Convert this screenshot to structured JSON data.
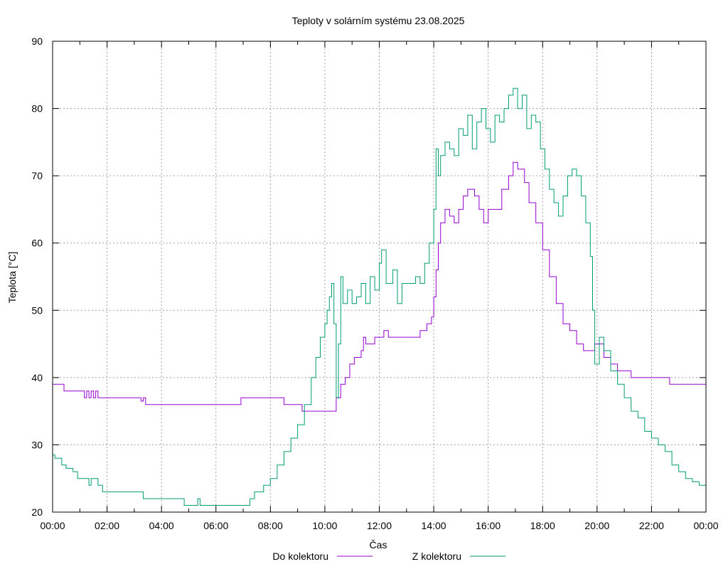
{
  "chart_data": {
    "type": "line",
    "title": "Teploty v solárním systému 23.08.2025",
    "xlabel": "Čas",
    "ylabel": "Teplota [°C]",
    "xlim": [
      "00:00",
      "24:00"
    ],
    "ylim": [
      20,
      90
    ],
    "grid": true,
    "legend_position": "bottom",
    "x_ticks": [
      "00:00",
      "02:00",
      "04:00",
      "06:00",
      "08:00",
      "10:00",
      "12:00",
      "14:00",
      "16:00",
      "18:00",
      "20:00",
      "22:00",
      "00:00"
    ],
    "y_ticks": [
      20,
      30,
      40,
      50,
      60,
      70,
      80,
      90
    ],
    "series": [
      {
        "name": "Do kolektoru",
        "color": "#9400d3",
        "points": [
          [
            "00:00",
            39
          ],
          [
            "00:25",
            39
          ],
          [
            "00:25",
            38
          ],
          [
            "01:10",
            38
          ],
          [
            "01:10",
            37
          ],
          [
            "01:15",
            38
          ],
          [
            "01:20",
            37
          ],
          [
            "01:25",
            38
          ],
          [
            "01:30",
            37
          ],
          [
            "01:35",
            38
          ],
          [
            "01:40",
            37
          ],
          [
            "03:15",
            37
          ],
          [
            "03:15",
            36.5
          ],
          [
            "03:20",
            37
          ],
          [
            "03:25",
            36
          ],
          [
            "06:55",
            36
          ],
          [
            "06:55",
            37
          ],
          [
            "08:30",
            37
          ],
          [
            "08:30",
            36
          ],
          [
            "09:10",
            36
          ],
          [
            "09:10",
            35
          ],
          [
            "10:20",
            35
          ],
          [
            "10:25",
            37
          ],
          [
            "10:35",
            39
          ],
          [
            "10:45",
            40
          ],
          [
            "10:55",
            42
          ],
          [
            "11:05",
            43
          ],
          [
            "11:15",
            43
          ],
          [
            "11:20",
            44
          ],
          [
            "11:25",
            46
          ],
          [
            "11:30",
            45
          ],
          [
            "11:45",
            45
          ],
          [
            "11:50",
            46
          ],
          [
            "12:05",
            46
          ],
          [
            "12:10",
            47
          ],
          [
            "12:20",
            46
          ],
          [
            "13:30",
            47
          ],
          [
            "13:45",
            48
          ],
          [
            "13:55",
            48
          ],
          [
            "13:55",
            49
          ],
          [
            "14:00",
            52
          ],
          [
            "14:05",
            56
          ],
          [
            "14:10",
            60
          ],
          [
            "14:15",
            63
          ],
          [
            "14:25",
            65
          ],
          [
            "14:35",
            64
          ],
          [
            "14:45",
            63
          ],
          [
            "14:55",
            65
          ],
          [
            "15:05",
            67
          ],
          [
            "15:15",
            68
          ],
          [
            "15:30",
            67
          ],
          [
            "15:40",
            65
          ],
          [
            "15:50",
            63
          ],
          [
            "16:00",
            65
          ],
          [
            "16:15",
            65
          ],
          [
            "16:30",
            68
          ],
          [
            "16:45",
            70
          ],
          [
            "16:55",
            72
          ],
          [
            "17:05",
            71
          ],
          [
            "17:20",
            69
          ],
          [
            "17:30",
            66
          ],
          [
            "17:45",
            63
          ],
          [
            "18:00",
            59
          ],
          [
            "18:15",
            55
          ],
          [
            "18:30",
            51
          ],
          [
            "18:45",
            48
          ],
          [
            "19:00",
            47
          ],
          [
            "19:15",
            45
          ],
          [
            "19:30",
            44
          ],
          [
            "19:45",
            44
          ],
          [
            "19:55",
            45
          ],
          [
            "20:15",
            43
          ],
          [
            "20:30",
            42
          ],
          [
            "20:45",
            41
          ],
          [
            "21:00",
            41
          ],
          [
            "21:15",
            40
          ],
          [
            "22:30",
            40
          ],
          [
            "22:40",
            39
          ],
          [
            "24:00",
            39
          ]
        ]
      },
      {
        "name": "Z kolektoru",
        "color": "#009e73",
        "points": [
          [
            "00:00",
            28.5
          ],
          [
            "00:05",
            28
          ],
          [
            "00:15",
            28
          ],
          [
            "00:20",
            27
          ],
          [
            "00:30",
            26.5
          ],
          [
            "00:45",
            26
          ],
          [
            "00:55",
            25
          ],
          [
            "01:15",
            25
          ],
          [
            "01:20",
            24
          ],
          [
            "01:25",
            25
          ],
          [
            "01:40",
            24
          ],
          [
            "01:50",
            23
          ],
          [
            "03:10",
            23
          ],
          [
            "03:20",
            22
          ],
          [
            "04:45",
            22
          ],
          [
            "04:50",
            21
          ],
          [
            "05:20",
            22
          ],
          [
            "05:25",
            21
          ],
          [
            "07:00",
            21
          ],
          [
            "07:15",
            22
          ],
          [
            "07:25",
            23
          ],
          [
            "07:45",
            24
          ],
          [
            "08:00",
            25
          ],
          [
            "08:15",
            27
          ],
          [
            "08:30",
            29
          ],
          [
            "08:45",
            31
          ],
          [
            "09:00",
            33
          ],
          [
            "09:15",
            36
          ],
          [
            "09:30",
            40
          ],
          [
            "09:40",
            43
          ],
          [
            "09:50",
            46
          ],
          [
            "10:00",
            48
          ],
          [
            "10:05",
            50
          ],
          [
            "10:10",
            52
          ],
          [
            "10:15",
            54
          ],
          [
            "10:20",
            48
          ],
          [
            "10:25",
            37
          ],
          [
            "10:30",
            45
          ],
          [
            "10:35",
            55
          ],
          [
            "10:40",
            51
          ],
          [
            "10:50",
            53
          ],
          [
            "11:00",
            51
          ],
          [
            "11:10",
            52
          ],
          [
            "11:20",
            54
          ],
          [
            "11:30",
            51
          ],
          [
            "11:40",
            55
          ],
          [
            "11:50",
            53
          ],
          [
            "12:00",
            57
          ],
          [
            "12:05",
            59
          ],
          [
            "12:15",
            54
          ],
          [
            "12:30",
            56
          ],
          [
            "12:40",
            51
          ],
          [
            "12:50",
            54
          ],
          [
            "13:20",
            55
          ],
          [
            "13:30",
            54
          ],
          [
            "13:40",
            57
          ],
          [
            "13:50",
            60
          ],
          [
            "14:00",
            65
          ],
          [
            "14:05",
            74
          ],
          [
            "14:10",
            70
          ],
          [
            "14:15",
            73
          ],
          [
            "14:25",
            75
          ],
          [
            "14:35",
            74
          ],
          [
            "14:45",
            73
          ],
          [
            "14:55",
            77
          ],
          [
            "15:05",
            76
          ],
          [
            "15:15",
            79
          ],
          [
            "15:25",
            74
          ],
          [
            "15:35",
            78
          ],
          [
            "15:45",
            80
          ],
          [
            "15:55",
            77
          ],
          [
            "16:05",
            75
          ],
          [
            "16:15",
            79
          ],
          [
            "16:25",
            78
          ],
          [
            "16:35",
            80
          ],
          [
            "16:45",
            82
          ],
          [
            "16:55",
            83
          ],
          [
            "17:05",
            80
          ],
          [
            "17:15",
            82
          ],
          [
            "17:25",
            77
          ],
          [
            "17:35",
            79
          ],
          [
            "17:45",
            78
          ],
          [
            "17:55",
            74
          ],
          [
            "18:05",
            71
          ],
          [
            "18:15",
            68
          ],
          [
            "18:25",
            66
          ],
          [
            "18:35",
            64
          ],
          [
            "18:45",
            67
          ],
          [
            "18:55",
            70
          ],
          [
            "19:05",
            71
          ],
          [
            "19:15",
            70
          ],
          [
            "19:25",
            67
          ],
          [
            "19:35",
            63
          ],
          [
            "19:45",
            58
          ],
          [
            "19:50",
            50
          ],
          [
            "19:55",
            42
          ],
          [
            "20:05",
            46
          ],
          [
            "20:15",
            44
          ],
          [
            "20:30",
            41
          ],
          [
            "20:45",
            39
          ],
          [
            "21:00",
            37
          ],
          [
            "21:15",
            35
          ],
          [
            "21:30",
            34
          ],
          [
            "21:45",
            32
          ],
          [
            "22:00",
            31
          ],
          [
            "22:15",
            30
          ],
          [
            "22:30",
            29
          ],
          [
            "22:45",
            27
          ],
          [
            "23:00",
            26
          ],
          [
            "23:15",
            25
          ],
          [
            "23:30",
            24.5
          ],
          [
            "23:45",
            24
          ],
          [
            "24:00",
            23
          ]
        ]
      }
    ]
  }
}
